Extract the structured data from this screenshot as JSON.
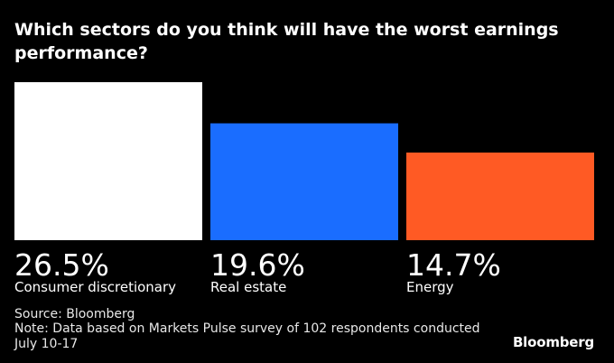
{
  "title": "Which sectors do you think will have the worst earnings performance?",
  "source": "Source: Bloomberg",
  "note": "Note: Data based on Markets Pulse survey of 102 respondents conducted July 10-17",
  "brand": "Bloomberg",
  "chart_data": {
    "type": "bar",
    "categories": [
      "Consumer discretionary",
      "Real estate",
      "Energy"
    ],
    "values": [
      26.5,
      19.6,
      14.7
    ],
    "value_labels": [
      "26.5%",
      "19.6%",
      "14.7%"
    ],
    "colors": [
      "#ffffff",
      "#1a6dff",
      "#ff5a24"
    ],
    "title": "Which sectors do you think will have the worst earnings performance?",
    "xlabel": "",
    "ylabel": "",
    "ylim": [
      0,
      26.5
    ],
    "grid": false,
    "legend": "none"
  }
}
